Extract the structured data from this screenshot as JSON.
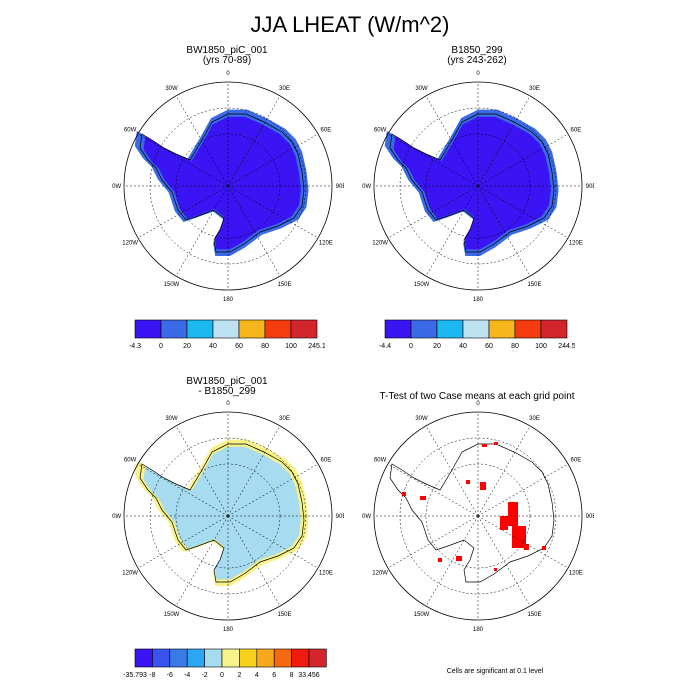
{
  "title": "JJA LHEAT (W/m^2)",
  "panels": {
    "tl": {
      "title1": "BW1850_piC_001",
      "title2": "(yrs 70-89)"
    },
    "tr": {
      "title1": "B1850_299",
      "title2": "(yrs 243-262)"
    },
    "bl": {
      "title1": "BW1850_piC_001",
      "title2": "- B1850_299"
    },
    "br": {
      "title1": "T-Test of two Case means at each grid point",
      "title2": ""
    }
  },
  "lon_labels": [
    "0",
    "30E",
    "60E",
    "90E",
    "120E",
    "150E",
    "180",
    "150W",
    "120W",
    "90W",
    "60W",
    "30W"
  ],
  "colorbars": {
    "tl": {
      "colors": [
        "#3a14f2",
        "#3a6ae6",
        "#1bb8f2",
        "#bfe2f2",
        "#f7b61c",
        "#f53c0e",
        "#d2262c"
      ],
      "labels": [
        "-4.3",
        "0",
        "20",
        "40",
        "60",
        "80",
        "100",
        "245.1"
      ]
    },
    "tr": {
      "colors": [
        "#3a14f2",
        "#3a6ae6",
        "#1bb8f2",
        "#bfe2f2",
        "#f7b61c",
        "#f53c0e",
        "#d2262c"
      ],
      "labels": [
        "-4.4",
        "0",
        "20",
        "40",
        "60",
        "80",
        "100",
        "244.5"
      ]
    },
    "bl": {
      "colors": [
        "#3a14f2",
        "#3a53f0",
        "#3a7ae6",
        "#2aa6f2",
        "#a6dbf0",
        "#f7f28a",
        "#f7d21c",
        "#f7a81c",
        "#f56a0e",
        "#f01a0e",
        "#d2262c"
      ],
      "labels": [
        "-35.793",
        "-8",
        "-6",
        "-4",
        "-2",
        "0",
        "2",
        "4",
        "6",
        "8",
        "33.456"
      ]
    }
  },
  "note": "Cells are significant at 0.1 level",
  "colors": {
    "land_tl": "#3a14f2",
    "coast_tl": "#3a6ae6",
    "land_bl": "#a6dbf0",
    "coast_bl": "#f7f28a",
    "significant": "#ff0000"
  }
}
